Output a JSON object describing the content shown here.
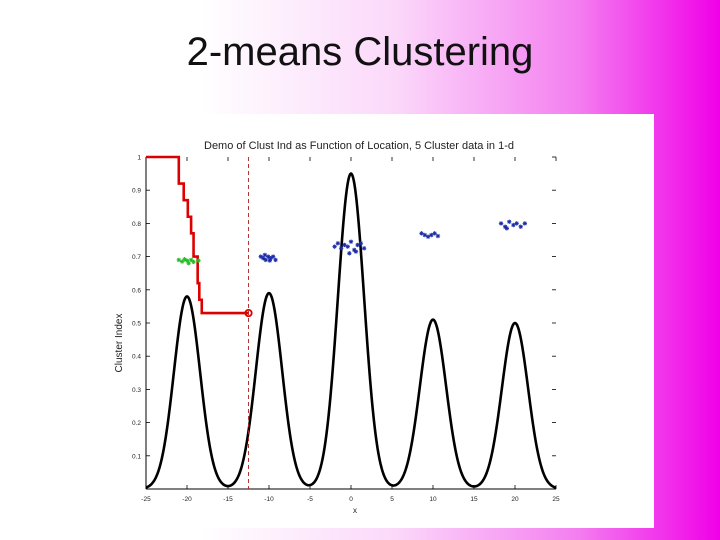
{
  "slide": {
    "title": "2-means Clustering"
  },
  "chart_data": {
    "type": "line",
    "title": "Demo of Clust Ind as Function of Location, 5 Cluster data in 1-d",
    "xlabel": "x",
    "ylabel": "Cluster Index",
    "xlim": [
      -25,
      25
    ],
    "ylim": [
      0,
      1
    ],
    "x_ticks": [
      "-25",
      "-20",
      "-15",
      "-10",
      "-5",
      "0",
      "5",
      "10",
      "15",
      "20",
      "25"
    ],
    "y_ticks": [
      "0.1",
      "0.2",
      "0.3",
      "0.4",
      "0.5",
      "0.6",
      "0.7",
      "0.8",
      "0.9",
      "1"
    ],
    "grid": false,
    "density_peaks": [
      {
        "center": -20,
        "height": 0.58
      },
      {
        "center": -10,
        "height": 0.59
      },
      {
        "center": 0,
        "height": 0.95
      },
      {
        "center": 10,
        "height": 0.51
      },
      {
        "center": 20,
        "height": 0.5
      }
    ],
    "density_width": 1.6,
    "cluster_index_curve": {
      "x": [
        -25,
        -21,
        -21,
        -20.4,
        -20.4,
        -19.9,
        -19.9,
        -19.5,
        -19.5,
        -19.2,
        -19.2,
        -18.7,
        -18.7,
        -18.5,
        -18.5,
        -18.2,
        -18.2,
        -12.5
      ],
      "y": [
        1,
        1,
        0.92,
        0.92,
        0.87,
        0.87,
        0.82,
        0.82,
        0.77,
        0.77,
        0.7,
        0.7,
        0.62,
        0.62,
        0.57,
        0.57,
        0.53,
        0.53
      ]
    },
    "current_split": {
      "x": -12.5,
      "y": 0.53
    },
    "clusters": [
      {
        "color": "#22bb22",
        "points": [
          [
            -21.0,
            0.69
          ],
          [
            -20.6,
            0.685
          ],
          [
            -20.3,
            0.692
          ],
          [
            -20.0,
            0.688
          ],
          [
            -19.8,
            0.68
          ],
          [
            -19.5,
            0.69
          ],
          [
            -19.2,
            0.684
          ],
          [
            -18.6,
            0.688
          ]
        ]
      },
      {
        "color": "#1a2aa8",
        "points": [
          [
            -11.0,
            0.7
          ],
          [
            -10.7,
            0.695
          ],
          [
            -10.4,
            0.69
          ],
          [
            -10.1,
            0.7
          ],
          [
            -9.8,
            0.695
          ],
          [
            -9.5,
            0.7
          ],
          [
            -9.2,
            0.69
          ],
          [
            -10.5,
            0.705
          ],
          [
            -9.9,
            0.688
          ]
        ]
      },
      {
        "color": "#1a2aa8",
        "points": [
          [
            -2.0,
            0.73
          ],
          [
            -1.6,
            0.74
          ],
          [
            -1.2,
            0.725
          ],
          [
            -0.8,
            0.735
          ],
          [
            -0.4,
            0.73
          ],
          [
            0.0,
            0.745
          ],
          [
            0.4,
            0.72
          ],
          [
            0.8,
            0.735
          ],
          [
            1.2,
            0.74
          ],
          [
            1.6,
            0.725
          ],
          [
            -0.2,
            0.71
          ],
          [
            0.6,
            0.715
          ]
        ]
      },
      {
        "color": "#1a2aa8",
        "points": [
          [
            8.6,
            0.77
          ],
          [
            9.0,
            0.765
          ],
          [
            9.4,
            0.76
          ],
          [
            9.8,
            0.765
          ],
          [
            10.2,
            0.77
          ],
          [
            10.6,
            0.762
          ]
        ]
      },
      {
        "color": "#1a2aa8",
        "points": [
          [
            18.3,
            0.8
          ],
          [
            18.8,
            0.79
          ],
          [
            19.3,
            0.805
          ],
          [
            19.8,
            0.795
          ],
          [
            20.2,
            0.8
          ],
          [
            20.7,
            0.79
          ],
          [
            21.2,
            0.8
          ],
          [
            19.0,
            0.785
          ]
        ]
      }
    ],
    "series": [
      {
        "color": "#000000"
      },
      {
        "color": "#dd0000"
      }
    ]
  }
}
